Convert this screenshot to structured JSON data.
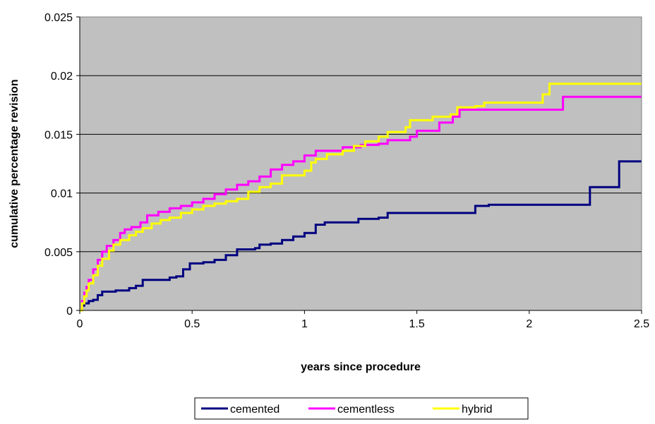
{
  "chart_data": {
    "type": "line",
    "title": "",
    "xlabel": "years since procedure",
    "ylabel": "cumulative percentage revision",
    "xlim": [
      0,
      2.5
    ],
    "ylim": [
      0,
      0.025
    ],
    "x_ticks": [
      "0",
      "0.5",
      "1",
      "1.5",
      "2",
      "2.5"
    ],
    "y_ticks": [
      "0",
      "0.005",
      "0.01",
      "0.015",
      "0.02",
      "0.025"
    ],
    "grid": "horizontal",
    "plot_background": "#c0c0c0",
    "legend_position": "bottom",
    "step": true,
    "series": [
      {
        "name": "cemented",
        "color": "#000080",
        "points": [
          [
            0,
            0
          ],
          [
            0.01,
            0.0004
          ],
          [
            0.02,
            0.0006
          ],
          [
            0.04,
            0.0008
          ],
          [
            0.06,
            0.0009
          ],
          [
            0.08,
            0.0013
          ],
          [
            0.1,
            0.0016
          ],
          [
            0.13,
            0.0016
          ],
          [
            0.16,
            0.0017
          ],
          [
            0.2,
            0.0017
          ],
          [
            0.22,
            0.0019
          ],
          [
            0.25,
            0.0021
          ],
          [
            0.28,
            0.0026
          ],
          [
            0.33,
            0.0026
          ],
          [
            0.37,
            0.0026
          ],
          [
            0.4,
            0.0028
          ],
          [
            0.43,
            0.0029
          ],
          [
            0.46,
            0.0035
          ],
          [
            0.49,
            0.004
          ],
          [
            0.55,
            0.0041
          ],
          [
            0.6,
            0.0043
          ],
          [
            0.65,
            0.0047
          ],
          [
            0.7,
            0.0052
          ],
          [
            0.78,
            0.0053
          ],
          [
            0.8,
            0.0056
          ],
          [
            0.85,
            0.0057
          ],
          [
            0.9,
            0.006
          ],
          [
            0.95,
            0.0063
          ],
          [
            1.0,
            0.0066
          ],
          [
            1.05,
            0.0073
          ],
          [
            1.09,
            0.0075
          ],
          [
            1.2,
            0.0075
          ],
          [
            1.24,
            0.0078
          ],
          [
            1.33,
            0.0079
          ],
          [
            1.37,
            0.0083
          ],
          [
            1.5,
            0.0083
          ],
          [
            1.76,
            0.0089
          ],
          [
            1.82,
            0.009
          ],
          [
            2.27,
            0.0105
          ],
          [
            2.4,
            0.0127
          ],
          [
            2.5,
            0.0127
          ]
        ]
      },
      {
        "name": "cementless",
        "color": "#ff00ff",
        "points": [
          [
            0,
            0
          ],
          [
            0.01,
            0.0008
          ],
          [
            0.02,
            0.0015
          ],
          [
            0.03,
            0.002
          ],
          [
            0.04,
            0.0026
          ],
          [
            0.06,
            0.0035
          ],
          [
            0.08,
            0.0043
          ],
          [
            0.1,
            0.005
          ],
          [
            0.12,
            0.0055
          ],
          [
            0.15,
            0.006
          ],
          [
            0.18,
            0.0066
          ],
          [
            0.2,
            0.0069
          ],
          [
            0.23,
            0.0071
          ],
          [
            0.27,
            0.0075
          ],
          [
            0.3,
            0.0081
          ],
          [
            0.35,
            0.0084
          ],
          [
            0.4,
            0.0087
          ],
          [
            0.45,
            0.0089
          ],
          [
            0.5,
            0.0092
          ],
          [
            0.55,
            0.0095
          ],
          [
            0.6,
            0.0099
          ],
          [
            0.65,
            0.0103
          ],
          [
            0.7,
            0.0107
          ],
          [
            0.75,
            0.011
          ],
          [
            0.8,
            0.0114
          ],
          [
            0.85,
            0.012
          ],
          [
            0.9,
            0.0124
          ],
          [
            0.95,
            0.0127
          ],
          [
            1.0,
            0.0132
          ],
          [
            1.05,
            0.0136
          ],
          [
            1.1,
            0.0136
          ],
          [
            1.17,
            0.0139
          ],
          [
            1.25,
            0.0141
          ],
          [
            1.33,
            0.0142
          ],
          [
            1.37,
            0.0145
          ],
          [
            1.47,
            0.0148
          ],
          [
            1.5,
            0.0153
          ],
          [
            1.6,
            0.016
          ],
          [
            1.66,
            0.0165
          ],
          [
            1.69,
            0.0171
          ],
          [
            1.8,
            0.0171
          ],
          [
            2.15,
            0.0182
          ],
          [
            2.5,
            0.0182
          ]
        ]
      },
      {
        "name": "hybrid",
        "color": "#ffff00",
        "points": [
          [
            0,
            0
          ],
          [
            0.01,
            0.0006
          ],
          [
            0.02,
            0.0012
          ],
          [
            0.03,
            0.0017
          ],
          [
            0.04,
            0.0023
          ],
          [
            0.06,
            0.003
          ],
          [
            0.08,
            0.0038
          ],
          [
            0.1,
            0.0044
          ],
          [
            0.13,
            0.0051
          ],
          [
            0.15,
            0.0056
          ],
          [
            0.18,
            0.006
          ],
          [
            0.22,
            0.0064
          ],
          [
            0.25,
            0.0067
          ],
          [
            0.28,
            0.007
          ],
          [
            0.32,
            0.0074
          ],
          [
            0.36,
            0.0077
          ],
          [
            0.4,
            0.0079
          ],
          [
            0.45,
            0.0083
          ],
          [
            0.5,
            0.0086
          ],
          [
            0.55,
            0.0089
          ],
          [
            0.6,
            0.0091
          ],
          [
            0.65,
            0.0093
          ],
          [
            0.7,
            0.0095
          ],
          [
            0.75,
            0.0101
          ],
          [
            0.8,
            0.0105
          ],
          [
            0.85,
            0.0108
          ],
          [
            0.9,
            0.0115
          ],
          [
            0.95,
            0.0115
          ],
          [
            1.0,
            0.0119
          ],
          [
            1.03,
            0.0126
          ],
          [
            1.05,
            0.0129
          ],
          [
            1.1,
            0.0133
          ],
          [
            1.17,
            0.0136
          ],
          [
            1.22,
            0.014
          ],
          [
            1.27,
            0.0144
          ],
          [
            1.33,
            0.0148
          ],
          [
            1.37,
            0.0152
          ],
          [
            1.45,
            0.0156
          ],
          [
            1.47,
            0.0162
          ],
          [
            1.57,
            0.0165
          ],
          [
            1.65,
            0.0167
          ],
          [
            1.68,
            0.0173
          ],
          [
            1.76,
            0.0174
          ],
          [
            1.8,
            0.0177
          ],
          [
            2.06,
            0.0184
          ],
          [
            2.09,
            0.0193
          ],
          [
            2.5,
            0.0193
          ]
        ]
      }
    ]
  }
}
